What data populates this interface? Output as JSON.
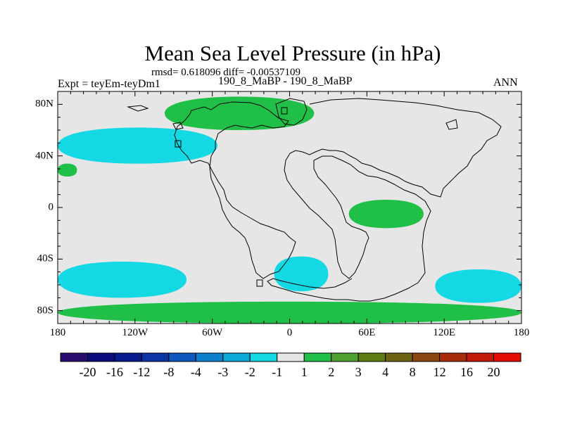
{
  "header": {
    "title": "Mean Sea Level Pressure (in hPa)",
    "rmsd_text": "rmsd= 0.618096 diff= -0.00537109",
    "expt_label": "Expt = teyEm-teyDm1",
    "cases_label": "190_8_MaBP - 190_8_MaBP",
    "season": "ANN"
  },
  "chart_data": {
    "type": "heatmap",
    "title": "Mean Sea Level Pressure (in hPa)",
    "projection": "cylindrical-equidistant",
    "x_ticks": [
      {
        "value": -180,
        "label": "180"
      },
      {
        "value": -120,
        "label": "120W"
      },
      {
        "value": -60,
        "label": "60W"
      },
      {
        "value": 0,
        "label": "0"
      },
      {
        "value": 60,
        "label": "60E"
      },
      {
        "value": 120,
        "label": "120E"
      },
      {
        "value": 180,
        "label": "180"
      }
    ],
    "y_ticks": [
      {
        "value": 80,
        "label": "80N"
      },
      {
        "value": 40,
        "label": "40N"
      },
      {
        "value": 0,
        "label": "0"
      },
      {
        "value": -40,
        "label": "40S"
      },
      {
        "value": -80,
        "label": "80S"
      }
    ],
    "xlim": [
      -180,
      180
    ],
    "ylim": [
      -90,
      90
    ],
    "colorbar": {
      "labels": [
        "-20",
        "-16",
        "-12",
        "-8",
        "-4",
        "-3",
        "-2",
        "-1",
        "1",
        "2",
        "3",
        "4",
        "8",
        "12",
        "16",
        "20"
      ],
      "colors": [
        "#2a0c6e",
        "#0c0c7c",
        "#081a8e",
        "#0c34a4",
        "#0c58bc",
        "#0c80cc",
        "#0ca8d8",
        "#14d8e4",
        "#e6e6e6",
        "#20c048",
        "#50a030",
        "#5c7c14",
        "#6c6410",
        "#8c4810",
        "#a82c0c",
        "#c41a0a",
        "#e40c04"
      ]
    },
    "regions": [
      {
        "name": "north-pacific-low-band",
        "class": "-2 to -1",
        "color": "#14d8e4",
        "lon": [
          -180,
          -56
        ],
        "lat": [
          34,
          62
        ]
      },
      {
        "name": "arctic-north-atlantic-positive",
        "class": "1 to 2",
        "color": "#20c048",
        "lon": [
          -97,
          19
        ],
        "lat": [
          60,
          86
        ]
      },
      {
        "name": "north-pacific-west-edge-positive",
        "class": "1 to 2",
        "color": "#20c048",
        "lon": [
          -180,
          -165
        ],
        "lat": [
          24,
          34
        ]
      },
      {
        "name": "equatorial-indian-ocean-positive",
        "class": "1 to 2",
        "color": "#20c048",
        "lon": [
          46,
          104
        ],
        "lat": [
          -16,
          6
        ]
      },
      {
        "name": "south-pacific-low-band",
        "class": "-2 to -1",
        "color": "#14d8e4",
        "lon": [
          -180,
          -80
        ],
        "lat": [
          -70,
          -42
        ]
      },
      {
        "name": "south-atlantic-low",
        "class": "-2 to -1",
        "color": "#14d8e4",
        "lon": [
          -12,
          30
        ],
        "lat": [
          -65,
          -38
        ]
      },
      {
        "name": "south-indian-pacific-low",
        "class": "-2 to -1",
        "color": "#14d8e4",
        "lon": [
          113,
          180
        ],
        "lat": [
          -74,
          -48
        ]
      },
      {
        "name": "antarctic-positive-band",
        "class": "1 to 2",
        "color": "#20c048",
        "lon": [
          -180,
          180
        ],
        "lat": [
          -90,
          -73
        ]
      }
    ]
  }
}
